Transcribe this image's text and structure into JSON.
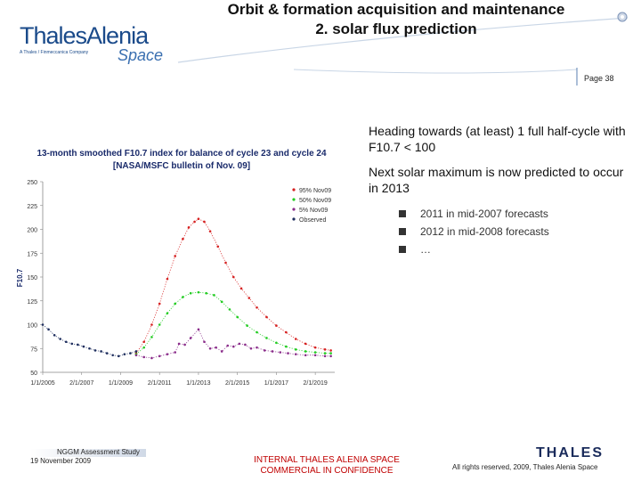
{
  "header": {
    "logo_line1": "ThalesAlenia",
    "logo_tagline": "A Thales / Finmeccanica Company",
    "logo_line2": "Space",
    "title_line1": "Orbit & formation acquisition and maintenance",
    "title_line2": "2. solar flux prediction",
    "page_number": "Page 38"
  },
  "bullets": {
    "point1": "Heading towards (at least) 1 full half-cycle with F10.7 < 100",
    "point2": "Next solar maximum is now predicted to occur in 2013",
    "sub_items": [
      "2011 in mid-2007 forecasts",
      "2012 in mid-2008 forecasts",
      "…"
    ]
  },
  "footer": {
    "project": "NGGM Assessment Study",
    "date": "19 November 2009",
    "confidential_line1": "INTERNAL THALES ALENIA SPACE",
    "confidential_line2": "COMMERCIAL IN CONFIDENCE",
    "thales_logo": "THALES",
    "rights": "All rights reserved, 2009, Thales Alenia Space"
  },
  "colors": {
    "accent_blue": "#1a4a8a",
    "confidential_red": "#c00000",
    "series_95": "#d62020",
    "series_50": "#22cc22",
    "series_5": "#8a2c8a",
    "series_observed": "#1e2e5e"
  },
  "chart_data": {
    "type": "scatter",
    "title": "13-month smoothed F10.7 index for balance of cycle 23 and cycle 24",
    "subtitle": "[NASA/MSFC bulletin of Nov. 09]",
    "xlabel": "",
    "ylabel": "F10.7",
    "ylim": [
      50,
      250
    ],
    "yticks": [
      50,
      75,
      100,
      125,
      150,
      175,
      200,
      225,
      250
    ],
    "xlim": [
      2005.0,
      2020.0
    ],
    "xticks": [
      2005,
      2007,
      2009,
      2011,
      2013,
      2015,
      2017,
      2019
    ],
    "xtick_labels": [
      "1/1/2005",
      "2/1/2007",
      "1/1/2009",
      "2/1/2011",
      "1/1/2013",
      "2/1/2015",
      "1/1/2017",
      "2/1/2019"
    ],
    "grid": false,
    "legend_position": "top-right",
    "series": [
      {
        "name": "95% Nov09",
        "x": [
          2009.8,
          2010.2,
          2010.6,
          2011.0,
          2011.4,
          2011.8,
          2012.2,
          2012.5,
          2012.8,
          2013.0,
          2013.3,
          2013.6,
          2014.0,
          2014.4,
          2014.8,
          2015.2,
          2015.6,
          2016.0,
          2016.5,
          2017.0,
          2017.5,
          2018.0,
          2018.5,
          2019.0,
          2019.5,
          2019.8
        ],
        "y": [
          70,
          82,
          100,
          122,
          148,
          172,
          190,
          202,
          208,
          211,
          208,
          198,
          182,
          165,
          150,
          138,
          128,
          118,
          108,
          99,
          92,
          85,
          80,
          76,
          74,
          73
        ]
      },
      {
        "name": "50% Nov09",
        "x": [
          2009.8,
          2010.2,
          2010.6,
          2011.0,
          2011.4,
          2011.8,
          2012.2,
          2012.6,
          2013.0,
          2013.4,
          2013.8,
          2014.2,
          2014.6,
          2015.0,
          2015.5,
          2016.0,
          2016.5,
          2017.0,
          2017.5,
          2018.0,
          2018.5,
          2019.0,
          2019.5,
          2019.8
        ],
        "y": [
          69,
          76,
          87,
          100,
          112,
          122,
          129,
          133,
          134,
          133,
          131,
          124,
          116,
          108,
          99,
          92,
          86,
          81,
          77,
          74,
          72,
          71,
          70,
          70
        ]
      },
      {
        "name": "5% Nov09",
        "x": [
          2009.8,
          2010.2,
          2010.6,
          2011.0,
          2011.4,
          2011.8,
          2012.0,
          2012.3,
          2012.6,
          2013.0,
          2013.3,
          2013.6,
          2013.9,
          2014.2,
          2014.5,
          2014.8,
          2015.1,
          2015.4,
          2015.7,
          2016.0,
          2016.4,
          2016.8,
          2017.2,
          2017.6,
          2018.0,
          2018.5,
          2019.0,
          2019.5,
          2019.8
        ],
        "y": [
          68,
          66,
          65,
          67,
          69,
          71,
          80,
          79,
          86,
          95,
          82,
          75,
          76,
          72,
          78,
          77,
          80,
          79,
          75,
          76,
          73,
          72,
          71,
          70,
          69,
          68,
          68,
          67,
          67
        ]
      },
      {
        "name": "Observed",
        "x": [
          2005.0,
          2005.3,
          2005.6,
          2005.9,
          2006.2,
          2006.5,
          2006.8,
          2007.1,
          2007.4,
          2007.7,
          2008.0,
          2008.3,
          2008.6,
          2008.9,
          2009.2,
          2009.5,
          2009.8
        ],
        "y": [
          100,
          95,
          89,
          85,
          82,
          80,
          79,
          77,
          75,
          73,
          72,
          70,
          68,
          67,
          69,
          70,
          72
        ]
      }
    ]
  }
}
